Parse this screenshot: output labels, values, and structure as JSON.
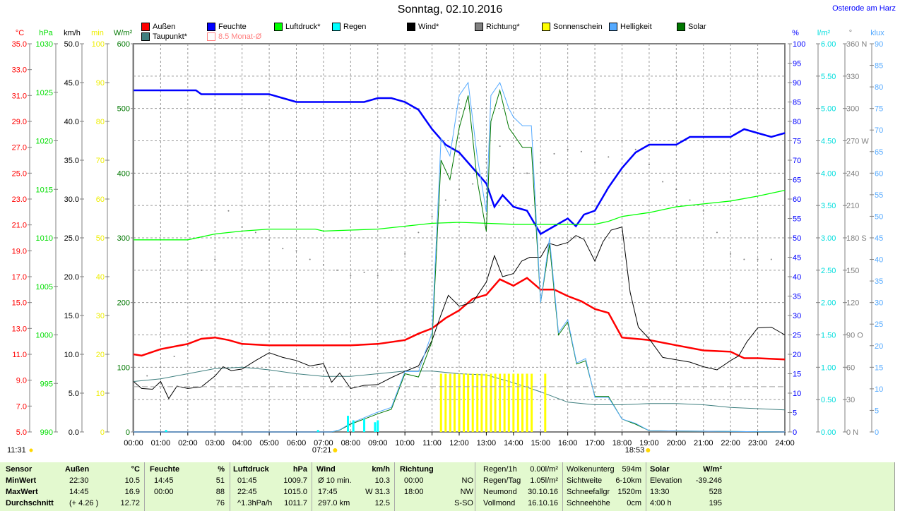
{
  "header": {
    "title": "Sonntag, 02.10.2016",
    "location": "Osterode am Harz"
  },
  "legend": [
    {
      "label": "Außen",
      "color": "#ff0000"
    },
    {
      "label": "Feuchte",
      "color": "#0000ff"
    },
    {
      "label": "Luftdruck*",
      "color": "#00ff00"
    },
    {
      "label": "Regen",
      "color": "#00ffff"
    },
    {
      "label": "Wind*",
      "color": "#000000"
    },
    {
      "label": "Richtung*",
      "color": "#808080"
    },
    {
      "label": "Sonnenschein",
      "color": "#ffff00"
    },
    {
      "label": "Helligkeit",
      "color": "#55aaff"
    },
    {
      "label": "Solar",
      "color": "#007700"
    },
    {
      "label": "Taupunkt*",
      "color": "#3f7f7f"
    },
    {
      "label": "8.5 Monat-Ø",
      "color": "#ff8080"
    }
  ],
  "sun": {
    "sunrise": "07:21",
    "sunset": "18:53"
  },
  "chart_data": {
    "type": "line",
    "xlabel": "",
    "xlim": [
      0,
      24
    ],
    "x_ticks": [
      "00:00",
      "01:00",
      "02:00",
      "03:00",
      "04:00",
      "05:00",
      "06:00",
      "07:00",
      "08:00",
      "09:00",
      "10:00",
      "11:00",
      "12:00",
      "13:00",
      "14:00",
      "15:00",
      "16:00",
      "17:00",
      "18:00",
      "19:00",
      "20:00",
      "21:00",
      "22:00",
      "23:00",
      "24:00"
    ],
    "grid": true,
    "axes": [
      {
        "unit": "°C",
        "color": "#ff0000",
        "range": [
          5,
          35
        ],
        "ticks": [
          "5.0",
          "7.0",
          "9.0",
          "11.0",
          "13.0",
          "15.0",
          "17.0",
          "19.0",
          "21.0",
          "23.0",
          "25.0",
          "27.0",
          "29.0",
          "31.0",
          "33.0",
          "35.0"
        ]
      },
      {
        "unit": "hPa",
        "color": "#00cc00",
        "range": [
          990,
          1030
        ],
        "ticks": [
          "990",
          "995",
          "1000",
          "1005",
          "1010",
          "1015",
          "1020",
          "1025",
          "1030"
        ]
      },
      {
        "unit": "km/h",
        "color": "#000000",
        "range": [
          0,
          50
        ],
        "ticks": [
          "0.0",
          "5.0",
          "10.0",
          "15.0",
          "20.0",
          "25.0",
          "30.0",
          "35.0",
          "40.0",
          "45.0",
          "50.0"
        ]
      },
      {
        "unit": "min",
        "color": "#ffff00",
        "range": [
          0,
          100
        ],
        "ticks": [
          "0",
          "10",
          "20",
          "30",
          "40",
          "50",
          "60",
          "70",
          "80",
          "90",
          "100"
        ]
      },
      {
        "unit": "W/m²",
        "color": "#007700",
        "range": [
          0,
          600
        ],
        "ticks": [
          "0",
          "100",
          "200",
          "300",
          "400",
          "500",
          "600"
        ]
      },
      {
        "unit": "%",
        "color": "#0000ff",
        "range": [
          0,
          100
        ],
        "ticks": [
          "0",
          "5",
          "10",
          "15",
          "20",
          "25",
          "30",
          "35",
          "40",
          "45",
          "50",
          "55",
          "60",
          "65",
          "70",
          "75",
          "80",
          "85",
          "90",
          "95",
          "100"
        ]
      },
      {
        "unit": "l/m²",
        "color": "#00dddd",
        "range": [
          0,
          6
        ],
        "ticks": [
          "0.00",
          "0.50",
          "1.00",
          "1.50",
          "2.00",
          "2.50",
          "3.00",
          "3.50",
          "4.00",
          "4.50",
          "5.00",
          "5.50",
          "6.00"
        ]
      },
      {
        "unit": "°",
        "color": "#808080",
        "range": [
          0,
          360
        ],
        "ticks": [
          "0 N",
          "30",
          "60",
          "90 O",
          "120",
          "150",
          "180 S",
          "210",
          "240",
          "270 W",
          "300",
          "330",
          "360 N"
        ]
      },
      {
        "unit": "klux",
        "color": "#55aaff",
        "range": [
          0,
          90
        ],
        "ticks": [
          "0",
          "5",
          "10",
          "15",
          "20",
          "25",
          "30",
          "35",
          "40",
          "45",
          "50",
          "55",
          "60",
          "65",
          "70",
          "75",
          "80",
          "85",
          "90"
        ]
      }
    ],
    "series": [
      {
        "name": "Außen",
        "unit": "°C",
        "color": "#ff0000",
        "x": [
          0,
          0.3,
          1,
          2,
          2.5,
          3,
          3.5,
          4,
          5,
          6,
          7,
          8,
          9,
          10,
          10.5,
          11,
          11.5,
          12,
          12.5,
          13,
          13.5,
          14,
          14.5,
          15,
          15.5,
          16,
          16.5,
          17,
          17.5,
          18,
          19,
          20,
          21,
          22,
          22.5,
          23,
          24
        ],
        "y": [
          11.0,
          10.9,
          11.4,
          11.8,
          12.2,
          12.3,
          12.1,
          11.8,
          11.7,
          11.7,
          11.7,
          11.7,
          11.8,
          12.1,
          12.6,
          13.0,
          13.8,
          14.4,
          15.3,
          15.6,
          16.8,
          16.3,
          16.9,
          16.0,
          16.0,
          15.5,
          15.1,
          14.5,
          14.2,
          12.3,
          12.1,
          11.7,
          11.3,
          11.2,
          10.7,
          10.7,
          10.6
        ]
      },
      {
        "name": "Taupunkt*",
        "unit": "°C",
        "color": "#3f7f7f",
        "x": [
          0,
          1,
          2,
          3,
          4,
          5,
          6,
          7,
          8,
          9,
          10,
          11,
          12,
          13,
          14,
          15,
          16,
          17,
          18,
          19,
          20,
          21,
          22,
          23,
          24
        ],
        "y": [
          8.9,
          9.1,
          9.5,
          9.9,
          10.0,
          9.8,
          9.5,
          9.3,
          9.3,
          9.5,
          9.7,
          9.7,
          9.5,
          9.4,
          8.8,
          8.1,
          7.3,
          7.1,
          7.1,
          7.2,
          7.2,
          7.1,
          6.9,
          6.8,
          6.7
        ]
      },
      {
        "name": "Feuchte",
        "unit": "%",
        "color": "#0000ff",
        "x": [
          0,
          2.3,
          2.5,
          5,
          5.5,
          6,
          6.5,
          7,
          8.5,
          9,
          9.5,
          10,
          10.5,
          11,
          11.5,
          12,
          12.5,
          13,
          13.3,
          13.6,
          14,
          14.5,
          15,
          15.5,
          16,
          16.3,
          16.6,
          17,
          17.5,
          18,
          18.5,
          19,
          20,
          20.5,
          22,
          22.5,
          23,
          23.5,
          24
        ],
        "y": [
          88,
          88,
          87,
          87,
          86,
          85,
          85,
          85,
          85,
          86,
          86,
          85,
          83,
          78,
          74,
          72,
          68,
          64,
          58,
          61,
          58,
          57,
          51,
          53,
          55,
          53,
          56,
          57,
          63,
          68,
          72,
          74,
          74,
          76,
          76,
          78,
          77,
          76,
          77
        ]
      },
      {
        "name": "Luftdruck*",
        "unit": "hPa",
        "color": "#00ff00",
        "x": [
          0,
          2,
          3,
          4,
          5,
          6,
          6.7,
          7,
          8,
          9,
          10,
          11,
          12,
          13,
          14,
          15,
          16,
          17,
          17.5,
          18,
          19,
          20,
          21,
          22,
          23,
          24
        ],
        "y": [
          1009.8,
          1009.8,
          1010.4,
          1010.7,
          1010.9,
          1010.9,
          1010.9,
          1010.7,
          1010.8,
          1010.9,
          1011.2,
          1011.5,
          1011.6,
          1011.5,
          1011.4,
          1011.4,
          1011.4,
          1011.4,
          1011.7,
          1012.2,
          1012.6,
          1013.2,
          1013.5,
          1013.8,
          1014.3,
          1014.9
        ]
      },
      {
        "name": "Wind*",
        "unit": "km/h",
        "color": "#000000",
        "x": [
          0,
          0.3,
          0.7,
          1,
          1.3,
          1.6,
          2,
          2.5,
          3,
          3.3,
          3.6,
          4,
          4.5,
          5,
          5.5,
          6,
          6.5,
          7,
          7.3,
          7.6,
          8,
          8.5,
          9,
          9.5,
          10,
          10.5,
          11,
          11.3,
          11.6,
          12,
          12.5,
          13,
          13.3,
          13.6,
          14,
          14.3,
          14.6,
          15,
          15.3,
          15.6,
          16,
          16.3,
          16.6,
          17,
          17.3,
          17.6,
          18,
          18.3,
          18.6,
          19,
          19.5,
          20,
          20.5,
          21,
          21.5,
          22,
          22.3,
          22.6,
          23,
          23.5,
          24
        ],
        "y": [
          6.5,
          5.6,
          5.5,
          6.5,
          4.3,
          5.9,
          5.6,
          5.8,
          7.2,
          8.4,
          7.9,
          8.1,
          9.2,
          10.2,
          9.6,
          9.2,
          8.5,
          8.8,
          6.4,
          7.6,
          5.6,
          6.0,
          6.1,
          7.0,
          7.8,
          8.5,
          11.8,
          14.8,
          17.6,
          16.2,
          16.7,
          19.3,
          22.7,
          20.0,
          20.4,
          22.0,
          22.5,
          22.5,
          24.3,
          24.0,
          24.4,
          25.3,
          24.8,
          22.0,
          24.5,
          26.0,
          26.4,
          18.0,
          13.5,
          12.0,
          9.6,
          9.3,
          9.0,
          8.4,
          8.0,
          9.2,
          9.8,
          11.6,
          13.4,
          13.5,
          12.5
        ]
      },
      {
        "name": "Richtung*",
        "unit": "°",
        "color": "#808080",
        "x": [
          0,
          0.5,
          1,
          1.5,
          2,
          2.5,
          3,
          3.5,
          4,
          4.5,
          5,
          5.5,
          6,
          6.5,
          7,
          7.5,
          8,
          8.5,
          9,
          9.5,
          10,
          10.5,
          11,
          11.5,
          12,
          12.5,
          13,
          13.5,
          14,
          14.5,
          15,
          15.5,
          16,
          16.5,
          17,
          17.5,
          18,
          18.5,
          19,
          19.5,
          20,
          20.5,
          21,
          21.5,
          22,
          22.5,
          23,
          23.5,
          24
        ],
        "y": [
          48,
          52,
          60,
          70,
          80,
          150,
          160,
          205,
          190,
          185,
          178,
          170,
          168,
          160,
          155,
          150,
          145,
          148,
          145,
          150,
          165,
          185,
          200,
          215,
          225,
          230,
          250,
          265,
          245,
          240,
          250,
          258,
          262,
          260,
          250,
          255,
          270,
          262,
          248,
          232,
          225,
          215,
          205,
          185,
          165,
          160,
          160,
          160,
          170
        ]
      },
      {
        "name": "Solar",
        "unit": "W/m²",
        "color": "#007700",
        "x": [
          0,
          7.3,
          7.6,
          8,
          8.5,
          9,
          9.5,
          10,
          10.5,
          11,
          11.33,
          11.66,
          12,
          12.33,
          12.66,
          13,
          13.17,
          13.5,
          13.83,
          14,
          14.33,
          14.66,
          15,
          15.33,
          15.66,
          16,
          16.33,
          16.66,
          17,
          17.5,
          18,
          18.5,
          19,
          24
        ],
        "y": [
          0,
          0,
          3,
          12,
          20,
          28,
          35,
          90,
          85,
          140,
          420,
          390,
          470,
          520,
          390,
          310,
          480,
          528,
          470,
          460,
          440,
          440,
          200,
          290,
          150,
          170,
          105,
          110,
          55,
          55,
          20,
          12,
          2,
          0
        ]
      },
      {
        "name": "Helligkeit",
        "unit": "klux",
        "color": "#55aaff",
        "x": [
          0,
          7.3,
          7.6,
          8,
          8.5,
          9,
          9.5,
          10,
          10.5,
          11,
          11.33,
          11.66,
          12,
          12.33,
          12.66,
          13,
          13.17,
          13.5,
          13.83,
          14,
          14.33,
          14.66,
          15,
          15.33,
          15.66,
          16,
          16.33,
          16.66,
          17,
          17.5,
          18,
          18.5,
          19,
          24
        ],
        "y": [
          0,
          0,
          0.5,
          2,
          3.3,
          4.6,
          5.7,
          14,
          14,
          23,
          68,
          64,
          78,
          81,
          64,
          51,
          78,
          81,
          75,
          73,
          71,
          71,
          30,
          45,
          23,
          26,
          16,
          17,
          8,
          8,
          3,
          2,
          0.3,
          0
        ]
      },
      {
        "name": "Regen",
        "unit": "l/m²",
        "type": "bar",
        "color": "#00ffff",
        "x": [
          1.2,
          6.8,
          7.9,
          8.1,
          8.5,
          8.9,
          9.0
        ],
        "y": [
          0.03,
          0.03,
          0.25,
          0.18,
          0.2,
          0.15,
          0.18
        ]
      },
      {
        "name": "Sonnenschein",
        "unit": "min",
        "type": "bar",
        "color": "#ffff00",
        "x": [
          11.33,
          11.5,
          11.67,
          11.83,
          12.0,
          12.17,
          12.33,
          12.5,
          12.67,
          12.83,
          13.0,
          13.17,
          13.33,
          13.5,
          13.67,
          13.83,
          14.0,
          14.17,
          14.33,
          14.5,
          14.67,
          15.17
        ],
        "y": [
          15,
          15,
          15,
          15,
          15,
          15,
          15,
          15,
          15,
          15,
          15,
          15,
          15,
          15,
          15,
          15,
          15,
          15,
          15,
          15,
          15,
          15
        ]
      },
      {
        "name": "8.5 Monat-Ø",
        "unit": "°C",
        "type": "hline",
        "color": "#a0a0a0",
        "value": 8.5
      }
    ]
  },
  "stats": {
    "headers": [
      "Sensor",
      "Außen",
      "°C",
      "Feuchte",
      "%",
      "Luftdruck",
      "hPa",
      "Wind",
      "km/h",
      "Richtung"
    ],
    "rows": [
      {
        "label": "MinWert",
        "a_t": "22:30",
        "a_v": "10.5",
        "f_t": "14:45",
        "f_v": "51",
        "l_t": "01:45",
        "l_v": "1009.7",
        "w_t": "Ø 10 min.",
        "w_v": "10.3",
        "r_t": "00:00",
        "r_v": "NO"
      },
      {
        "label": "MaxWert",
        "a_t": "14:45",
        "a_v": "16.9",
        "f_t": "00:00",
        "f_v": "88",
        "l_t": "22:45",
        "l_v": "1015.0",
        "w_t": "17:45",
        "w_v": "W 31.3",
        "r_t": "18:00",
        "r_v": "NW"
      },
      {
        "label": "Durchschnitt",
        "a_t": "(+ 4.26 )",
        "a_v": "12.72",
        "f_t": "",
        "f_v": "76",
        "l_t": "^1.3hPa/h",
        "l_v": "1011.7",
        "w_t": "297.0 km",
        "w_v": "12.5",
        "r_t": "",
        "r_v": "S-SO"
      }
    ],
    "extra": [
      [
        "Regen/1h",
        "0.00l/m²",
        "Wolkenunterg",
        "594m",
        "Solar",
        "W/m²"
      ],
      [
        "Regen/Tag",
        "1.05l/m²",
        "Sichtweite",
        "6-10km",
        "Elevation",
        "-39.246"
      ],
      [
        "Neumond",
        "30.10.16",
        "Schneefallgr",
        "1520m",
        "13:30",
        "528"
      ],
      [
        "Vollmond",
        "16.10.16",
        "Schneehöhe",
        "0cm",
        "4:00 h",
        "195"
      ]
    ]
  }
}
